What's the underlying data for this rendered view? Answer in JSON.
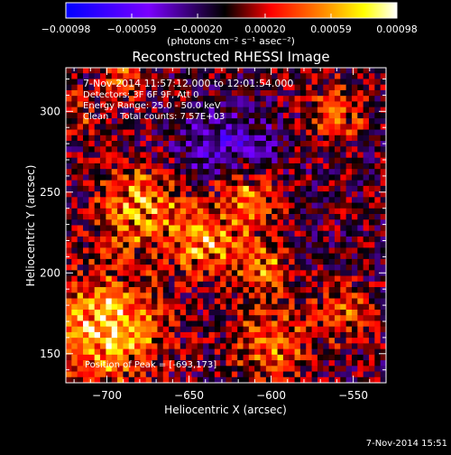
{
  "chart_data": {
    "type": "heatmap",
    "title": "Reconstructed RHESSI Image",
    "xlabel": "Heliocentric X (arcsec)",
    "ylabel": "Heliocentric Y (arcsec)",
    "xlim": [
      -725,
      -530
    ],
    "ylim": [
      132,
      327
    ],
    "xticks": [
      -700,
      -650,
      -600,
      -550
    ],
    "xtick_labels": [
      "−700",
      "−650",
      "−600",
      "−550"
    ],
    "yticks": [
      150,
      200,
      250,
      300
    ],
    "ytick_labels": [
      "150",
      "200",
      "250",
      "300"
    ],
    "colorbar": {
      "range": [
        -0.00098,
        0.00098
      ],
      "ticks": [
        -0.00098,
        -0.00059,
        -0.0002,
        0.0002,
        0.00059,
        0.00098
      ],
      "tick_labels": [
        "−0.00098",
        "−0.00059",
        "−0.00020",
        "0.00020",
        "0.00059",
        "0.00098"
      ],
      "unit_label": "(photons cm⁻² s⁻¹ asec⁻²)",
      "colors": [
        "#0000ff",
        "#7a00ff",
        "#000000",
        "#ff0000",
        "#ff8c00",
        "#ffff00",
        "#ffffff"
      ]
    },
    "annotations": [
      "7-Nov-2014 11:57:12.000 to 12:01:54.000",
      "Detectors: 3F 6F 9F, Att 0",
      "Energy Range: 25.0 - 50.0 keV",
      "Clean    Total counts: 7.57E+03",
      "Position of Peak = [-693,173]"
    ],
    "peak_position": [
      -693,
      173
    ],
    "grid_shape": [
      56,
      56
    ],
    "grid_note": "approximate pattern: emission blobs near (-700,165), (-680,240), (-640,220), (-615,250), (-605,205), (-600,155); mottled noise elsewhere",
    "timestamp": "7-Nov-2014 15:51"
  }
}
